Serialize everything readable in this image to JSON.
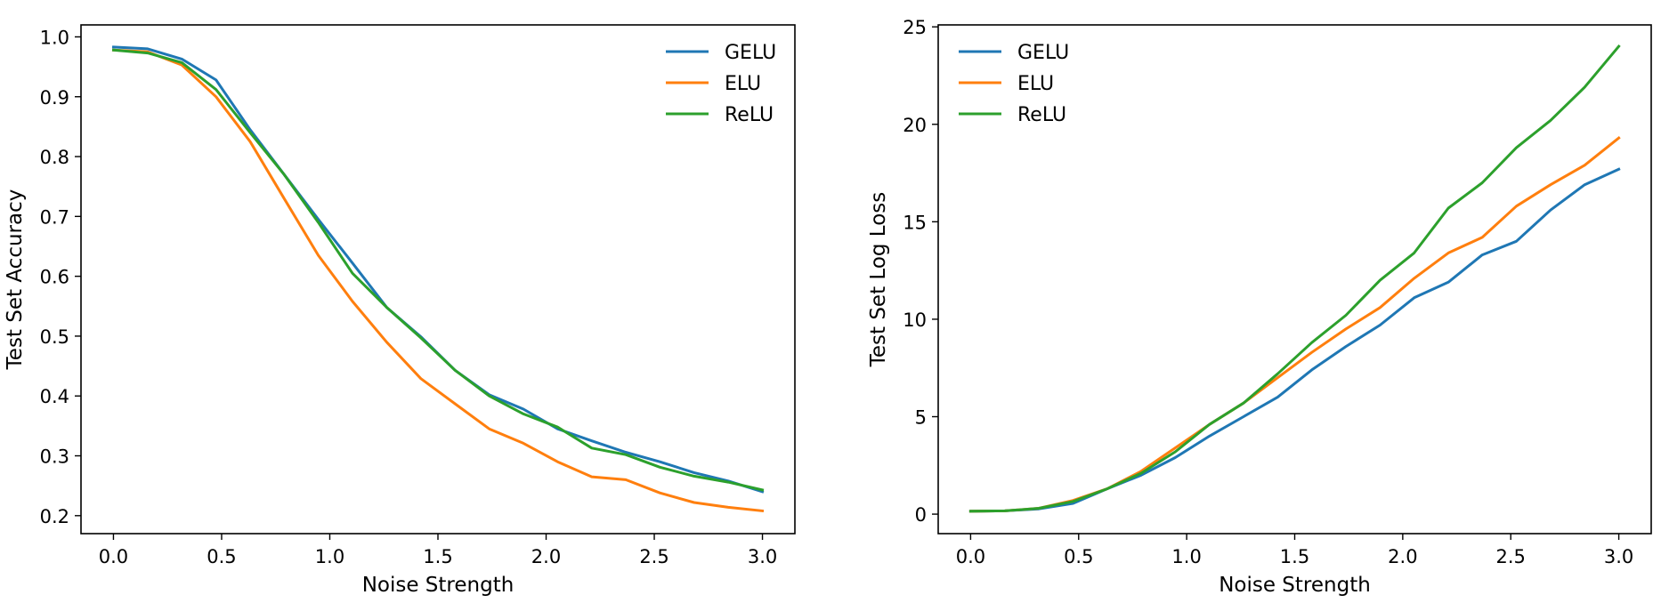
{
  "chart_data": [
    {
      "type": "line",
      "title": "",
      "xlabel": "Noise Strength",
      "ylabel": "Test Set Accuracy",
      "xlim": [
        -0.15,
        3.15
      ],
      "ylim": [
        0.17,
        1.02
      ],
      "xticks": [
        "0.0",
        "0.5",
        "1.0",
        "1.5",
        "2.0",
        "2.5",
        "3.0"
      ],
      "yticks": [
        "0.2",
        "0.3",
        "0.4",
        "0.5",
        "0.6",
        "0.7",
        "0.8",
        "0.9",
        "1.0"
      ],
      "x": [
        0.0,
        0.158,
        0.316,
        0.474,
        0.632,
        0.789,
        0.947,
        1.105,
        1.263,
        1.421,
        1.579,
        1.737,
        1.895,
        2.053,
        2.211,
        2.368,
        2.526,
        2.684,
        2.842,
        3.0
      ],
      "series": [
        {
          "name": "GELU",
          "color": "#1f77b4",
          "values": [
            0.983,
            0.98,
            0.963,
            0.928,
            0.845,
            0.77,
            0.695,
            0.622,
            0.548,
            0.499,
            0.443,
            0.402,
            0.378,
            0.345,
            0.325,
            0.306,
            0.29,
            0.272,
            0.258,
            0.24
          ]
        },
        {
          "name": "ELU",
          "color": "#ff7f0e",
          "values": [
            0.978,
            0.975,
            0.953,
            0.9,
            0.825,
            0.73,
            0.635,
            0.558,
            0.49,
            0.429,
            0.387,
            0.345,
            0.321,
            0.29,
            0.265,
            0.26,
            0.238,
            0.222,
            0.214,
            0.208
          ]
        },
        {
          "name": "ReLU",
          "color": "#2ca02c",
          "values": [
            0.978,
            0.973,
            0.957,
            0.912,
            0.84,
            0.77,
            0.69,
            0.605,
            0.548,
            0.497,
            0.443,
            0.4,
            0.37,
            0.348,
            0.313,
            0.302,
            0.281,
            0.266,
            0.256,
            0.243
          ]
        }
      ],
      "legend": "top-right",
      "grid": false
    },
    {
      "type": "line",
      "title": "",
      "xlabel": "Noise Strength",
      "ylabel": "Test Set Log Loss",
      "xlim": [
        -0.15,
        3.15
      ],
      "ylim": [
        -1.0,
        25.1
      ],
      "xticks": [
        "0.0",
        "0.5",
        "1.0",
        "1.5",
        "2.0",
        "2.5",
        "3.0"
      ],
      "yticks": [
        "0",
        "5",
        "10",
        "15",
        "20",
        "25"
      ],
      "x": [
        0.0,
        0.158,
        0.316,
        0.474,
        0.632,
        0.789,
        0.947,
        1.105,
        1.263,
        1.421,
        1.579,
        1.737,
        1.895,
        2.053,
        2.211,
        2.368,
        2.526,
        2.684,
        2.842,
        3.0
      ],
      "series": [
        {
          "name": "GELU",
          "color": "#1f77b4",
          "values": [
            0.15,
            0.17,
            0.27,
            0.55,
            1.3,
            2.0,
            2.9,
            4.0,
            5.0,
            6.0,
            7.4,
            8.6,
            9.7,
            11.1,
            11.9,
            13.3,
            14.0,
            15.6,
            16.9,
            17.7
          ]
        },
        {
          "name": "ELU",
          "color": "#ff7f0e",
          "values": [
            0.15,
            0.17,
            0.3,
            0.7,
            1.3,
            2.2,
            3.4,
            4.6,
            5.7,
            7.0,
            8.3,
            9.5,
            10.6,
            12.1,
            13.4,
            14.2,
            15.8,
            16.9,
            17.9,
            19.3
          ]
        },
        {
          "name": "ReLU",
          "color": "#2ca02c",
          "values": [
            0.15,
            0.17,
            0.3,
            0.65,
            1.3,
            2.1,
            3.2,
            4.6,
            5.7,
            7.2,
            8.8,
            10.2,
            12.0,
            13.4,
            15.7,
            17.0,
            18.8,
            20.2,
            21.9,
            24.0
          ]
        }
      ],
      "legend": "top-left",
      "grid": false
    }
  ]
}
